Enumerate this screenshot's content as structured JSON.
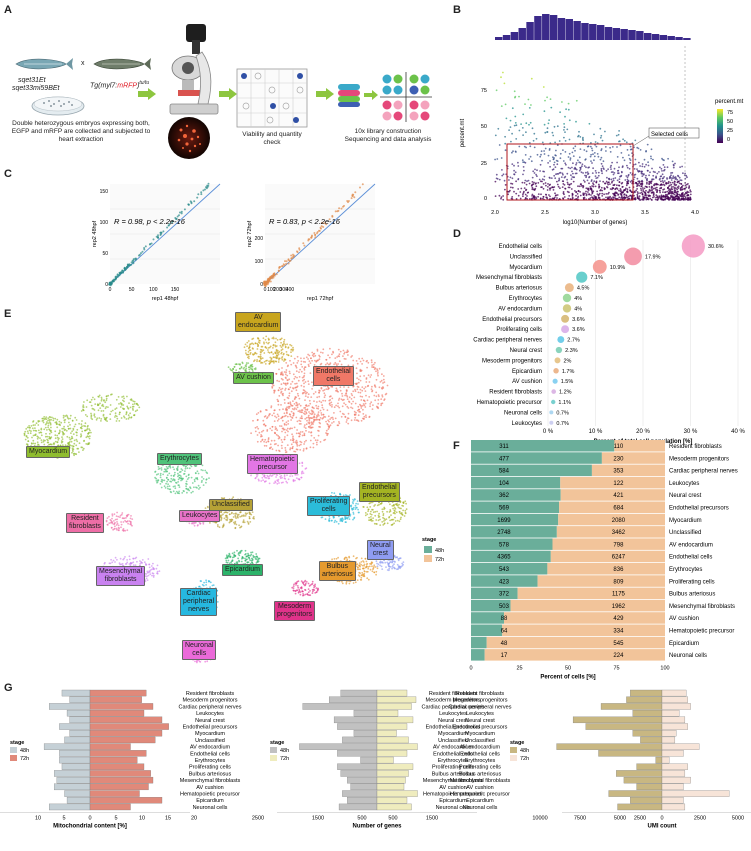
{
  "panels": {
    "A": "A",
    "B": "B",
    "C": "C",
    "D": "D",
    "E": "E",
    "F": "F",
    "G": "G"
  },
  "panel_a": {
    "fish1_label": "sqet31Et",
    "fish1_label2": "sqet33mi59BEt",
    "cross": "x",
    "fish2_label_prefix": "Tg(myl7:",
    "fish2_label_red": "mRFP",
    "fish2_label_suffix": ")",
    "fish2_sup": "tu/tu",
    "desc_line1": "Double heterozygous embryos expressing both,",
    "desc_line2": "EGFP and mRFP are collected and subjected to",
    "desc_line3": "heart extraction",
    "viability_line1": "Viability and quantity",
    "viability_line2": "check",
    "library_line1": "10x library construction",
    "library_line2": "Sequencing and data analysis"
  },
  "panel_b": {
    "ylabel": "percent.mt",
    "xlabel": "log10(Number of genes)",
    "xticks": [
      "2.0",
      "2.5",
      "3.0",
      "3.5",
      "4.0"
    ],
    "yticks": [
      "0",
      "25",
      "50",
      "75"
    ],
    "legend_title": "percent.mt",
    "legend_ticks": [
      "75",
      "50",
      "25",
      "0"
    ],
    "selected_label": "Selected cells"
  },
  "panel_c": {
    "left": {
      "stat": "R = 0.98, p < 2.2e-16",
      "xlabel": "rep1 48hpf",
      "ylabel": "rep2 48hpf",
      "xticks": [
        "0",
        "50",
        "100",
        "150"
      ],
      "yticks": [
        "0",
        "50",
        "100",
        "150"
      ]
    },
    "right": {
      "stat": "R = 0.83, p < 2.2e-16",
      "xlabel": "rep1 72hpf",
      "ylabel": "rep2 72hpf",
      "xticks": [
        "0",
        "100",
        "200",
        "300",
        "400"
      ],
      "yticks": [
        "0",
        "100",
        "200"
      ]
    }
  },
  "panel_d": {
    "xlabel": "Percent of total cell population [%]",
    "xticks": [
      "0 %",
      "10 %",
      "20 %",
      "30 %",
      "40 %"
    ]
  },
  "panel_e": {
    "clusters": [
      {
        "name": "AV endocardium",
        "line1": "AV",
        "line2": "endocardium",
        "color": "#c8a51e"
      },
      {
        "name": "AV cushion",
        "line1": "AV cushion",
        "line2": "",
        "color": "#6cc24a"
      },
      {
        "name": "Endothelial cells",
        "line1": "Endothelial",
        "line2": "cells",
        "color": "#f07867"
      },
      {
        "name": "Myocardium",
        "line1": "Myocardium",
        "line2": "",
        "color": "#8fbd2e"
      },
      {
        "name": "Erythrocytes",
        "line1": "Erythrocytes",
        "line2": "",
        "color": "#4fc37a"
      },
      {
        "name": "Hematopoietic precursor",
        "line1": "Hematopoietic",
        "line2": "precursor",
        "color": "#e276e5"
      },
      {
        "name": "Unclassified",
        "line1": "Unclassified",
        "line2": "",
        "color": "#b6a236"
      },
      {
        "name": "Proliferating cells",
        "line1": "Proliferating",
        "line2": "cells",
        "color": "#2bbcd9"
      },
      {
        "name": "Endothelial precursors",
        "line1": "Endothelial",
        "line2": "precursors",
        "color": "#a4b422"
      },
      {
        "name": "Resident fibroblasts",
        "line1": "Resident",
        "line2": "fibroblasts",
        "color": "#ee6ea6"
      },
      {
        "name": "Leukocytes",
        "line1": "Leukocytes",
        "line2": "",
        "color": "#e872c8"
      },
      {
        "name": "Mesenchymal fibroblasts",
        "line1": "Mesenchymal",
        "line2": "fibroblasts",
        "color": "#c982f0"
      },
      {
        "name": "Epicardium",
        "line1": "Epicardium",
        "line2": "",
        "color": "#2cb36a"
      },
      {
        "name": "Bulbus arteriosus",
        "line1": "Bulbus",
        "line2": "arteriosus",
        "color": "#e59a2e"
      },
      {
        "name": "Neural crest",
        "line1": "Neural",
        "line2": "crest",
        "color": "#8f9cf2"
      },
      {
        "name": "Cardiac peripheral nerves",
        "line1": "Cardiac",
        "line2": "peripheral",
        "line3": "nerves",
        "color": "#26b8e0"
      },
      {
        "name": "Mesoderm progenitors",
        "line1": "Mesoderm",
        "line2": "progenitors",
        "color": "#e0338a"
      },
      {
        "name": "Neuronal cells",
        "line1": "Neuronal",
        "line2": "cells",
        "color": "#eb6ad9"
      }
    ]
  },
  "panel_f": {
    "xlabel": "Percent of cells [%]",
    "xticks": [
      "0",
      "25",
      "50",
      "75",
      "100"
    ],
    "legend_title": "stage",
    "legend_items": [
      "48h",
      "72h"
    ],
    "colors": {
      "48h": "#6aae9a",
      "72h": "#f2c49a"
    }
  },
  "panel_g": {
    "mito": {
      "xlabel": "Mitochondrial content [%]",
      "xticks": [
        "10",
        "5",
        "0",
        "5",
        "10",
        "15",
        "20"
      ],
      "legend_title": "stage",
      "legend_items": [
        "48h",
        "72h"
      ],
      "colors": {
        "48h": "#c5d0d6",
        "72h": "#e0897a"
      }
    },
    "genes": {
      "xlabel": "Number of genes",
      "xticks": [
        "2500",
        "1500",
        "500",
        "500",
        "1500"
      ],
      "legend_title": "stage",
      "legend_items": [
        "48h",
        "72h"
      ],
      "colors": {
        "48h": "#c1c1c1",
        "72h": "#efecbe"
      }
    },
    "umi": {
      "xlabel": "UMI count",
      "xticks": [
        "10000",
        "7500",
        "5000",
        "2500",
        "0",
        "2500",
        "5000"
      ],
      "legend_title": "stage",
      "legend_items": [
        "48h",
        "72h"
      ],
      "colors": {
        "48h": "#c8b782",
        "72h": "#f7e4d8"
      }
    }
  },
  "chart_data": [
    {
      "type": "scatter",
      "panel": "D",
      "xlabel": "Percent of total cell population [%]",
      "xlim": [
        0,
        40
      ],
      "categories": [
        "Endothelial cells",
        "Unclassified",
        "Myocardium",
        "Mesenchymal fibroblasts",
        "Bulbus arteriosus",
        "Erythrocytes",
        "AV endocardium",
        "Endothelial precursors",
        "Proliferating cells",
        "Cardiac peripheral nerves",
        "Neural crest",
        "Mesoderm progenitors",
        "Epicardium",
        "AV cushion",
        "Resident fibroblasts",
        "Hematopoietic precursor",
        "Neuronal cells",
        "Leukocytes"
      ],
      "values": [
        30.6,
        17.9,
        10.9,
        7.1,
        4.5,
        4,
        4,
        3.6,
        3.6,
        2.7,
        2.3,
        2,
        1.7,
        1.5,
        1.2,
        1.1,
        0.7,
        0.7
      ],
      "labels": [
        "30.6%",
        "17.9%",
        "10.9%",
        "7.1%",
        "4.5%",
        "4%",
        "4%",
        "3.6%",
        "3.6%",
        "2.7%",
        "2.3%",
        "2%",
        "1.7%",
        "1.5%",
        "1.2%",
        "1.1%",
        "0.7%",
        "0.7%"
      ],
      "colors": [
        "#f59ac4",
        "#f28ba0",
        "#f4908a",
        "#4fc7c4",
        "#e9b07a",
        "#8fd48e",
        "#cbc36e",
        "#d3b46b",
        "#d6a8e6",
        "#59c6e6",
        "#75cbb0",
        "#e3bd7a",
        "#e9aa7a",
        "#74c9ee",
        "#d6aae0",
        "#62c8c7",
        "#9fd0ef",
        "#c4c7ee"
      ]
    },
    {
      "type": "bar",
      "panel": "F",
      "stacked": true,
      "xlabel": "Percent of cells [%]",
      "categories": [
        "Resident fibroblasts",
        "Mesoderm progenitors",
        "Cardiac peripheral nerves",
        "Leukocytes",
        "Neural crest",
        "Endothelial precursors",
        "Myocardium",
        "Unclassified",
        "AV endocardium",
        "Endothelial cells",
        "Erythrocytes",
        "Proliferating cells",
        "Bulbus arteriosus",
        "Mesenchymal fibroblasts",
        "AV cushion",
        "Hematopoietic precursor",
        "Epicardium",
        "Neuronal cells"
      ],
      "series": [
        {
          "name": "48h",
          "values": [
            311,
            477,
            584,
            104,
            362,
            569,
            1699,
            2748,
            578,
            4365,
            543,
            423,
            372,
            503,
            88,
            64,
            48,
            17
          ]
        },
        {
          "name": "72h",
          "values": [
            110,
            230,
            353,
            122,
            421,
            684,
            2080,
            3462,
            798,
            6247,
            836,
            809,
            1175,
            1962,
            429,
            334,
            545,
            224
          ]
        }
      ]
    },
    {
      "type": "bar",
      "panel": "G-mito",
      "xlabel": "Mitochondrial content [%]",
      "categories": [
        "Resident fibroblasts",
        "Mesoderm progenitors",
        "Cardiac peripheral nerves",
        "Leukocytes",
        "Neural crest",
        "Endothelial precursors",
        "Myocardium",
        "Unclassified",
        "AV endocardium",
        "Endothelial cells",
        "Erythrocytes",
        "Proliferating cells",
        "Bulbus arteriosus",
        "Mesenchymal fibroblasts",
        "AV cushion",
        "Hematopoietic precursor",
        "Epicardium",
        "Neuronal cells"
      ],
      "series": [
        {
          "name": "48h",
          "values": [
            5.5,
            4,
            8,
            4.5,
            4,
            6,
            4,
            5,
            9,
            6,
            6,
            5.5,
            7,
            6.5,
            7,
            5,
            4.5,
            8
          ]
        },
        {
          "name": "72h",
          "values": [
            12.5,
            11.5,
            14,
            12,
            16,
            17.5,
            16,
            14.5,
            9,
            12.5,
            10.5,
            12,
            13.5,
            14,
            13,
            11,
            16,
            9
          ]
        }
      ]
    },
    {
      "type": "bar",
      "panel": "G-genes",
      "xlabel": "Number of genes",
      "categories": [
        "Resident fibroblasts",
        "Mesoderm progenitors",
        "Cardiac peripheral nerves",
        "Leukocytes",
        "Neural crest",
        "Endothelial precursors",
        "Myocardium",
        "Unclassified",
        "AV endocardium",
        "Endothelial cells",
        "Erythrocytes",
        "Proliferating cells",
        "Bulbus arteriosus",
        "Mesenchymal fibroblasts",
        "AV cushion",
        "Hematopoietic precursor",
        "Epicardium",
        "Neuronal cells"
      ],
      "series": [
        {
          "name": "48h",
          "values": [
            1100,
            1450,
            2250,
            700,
            1300,
            1200,
            700,
            1050,
            2350,
            1200,
            500,
            1200,
            1100,
            900,
            800,
            1050,
            900,
            1150
          ]
        },
        {
          "name": "72h",
          "values": [
            1000,
            1300,
            1150,
            700,
            1200,
            1000,
            650,
            1050,
            1350,
            1000,
            550,
            1200,
            1050,
            950,
            900,
            1350,
            1000,
            1150
          ]
        }
      ]
    },
    {
      "type": "bar",
      "panel": "G-umi",
      "xlabel": "UMI count",
      "categories": [
        "Resident fibroblasts",
        "Mesoderm progenitors",
        "Cardiac peripheral nerves",
        "Leukocytes",
        "Neural crest",
        "Endothelial precursors",
        "Myocardium",
        "Unclassified",
        "AV endocardium",
        "Endothelial cells",
        "Erythrocytes",
        "Proliferating cells",
        "Bulbus arteriosus",
        "Mesenchymal fibroblasts",
        "AV cushion",
        "Hematopoietic precursor",
        "Epicardium",
        "Neuronal cells"
      ],
      "series": [
        {
          "name": "48h",
          "values": [
            2500,
            2800,
            4800,
            2300,
            7000,
            6000,
            2300,
            1700,
            8300,
            5000,
            500,
            2000,
            3600,
            3000,
            2000,
            4200,
            2500,
            3500
          ]
        },
        {
          "name": "72h",
          "values": [
            1700,
            1800,
            2000,
            1200,
            1600,
            1800,
            1000,
            900,
            2600,
            1500,
            500,
            1800,
            1600,
            2000,
            1500,
            4700,
            1500,
            1600
          ]
        }
      ]
    }
  ]
}
